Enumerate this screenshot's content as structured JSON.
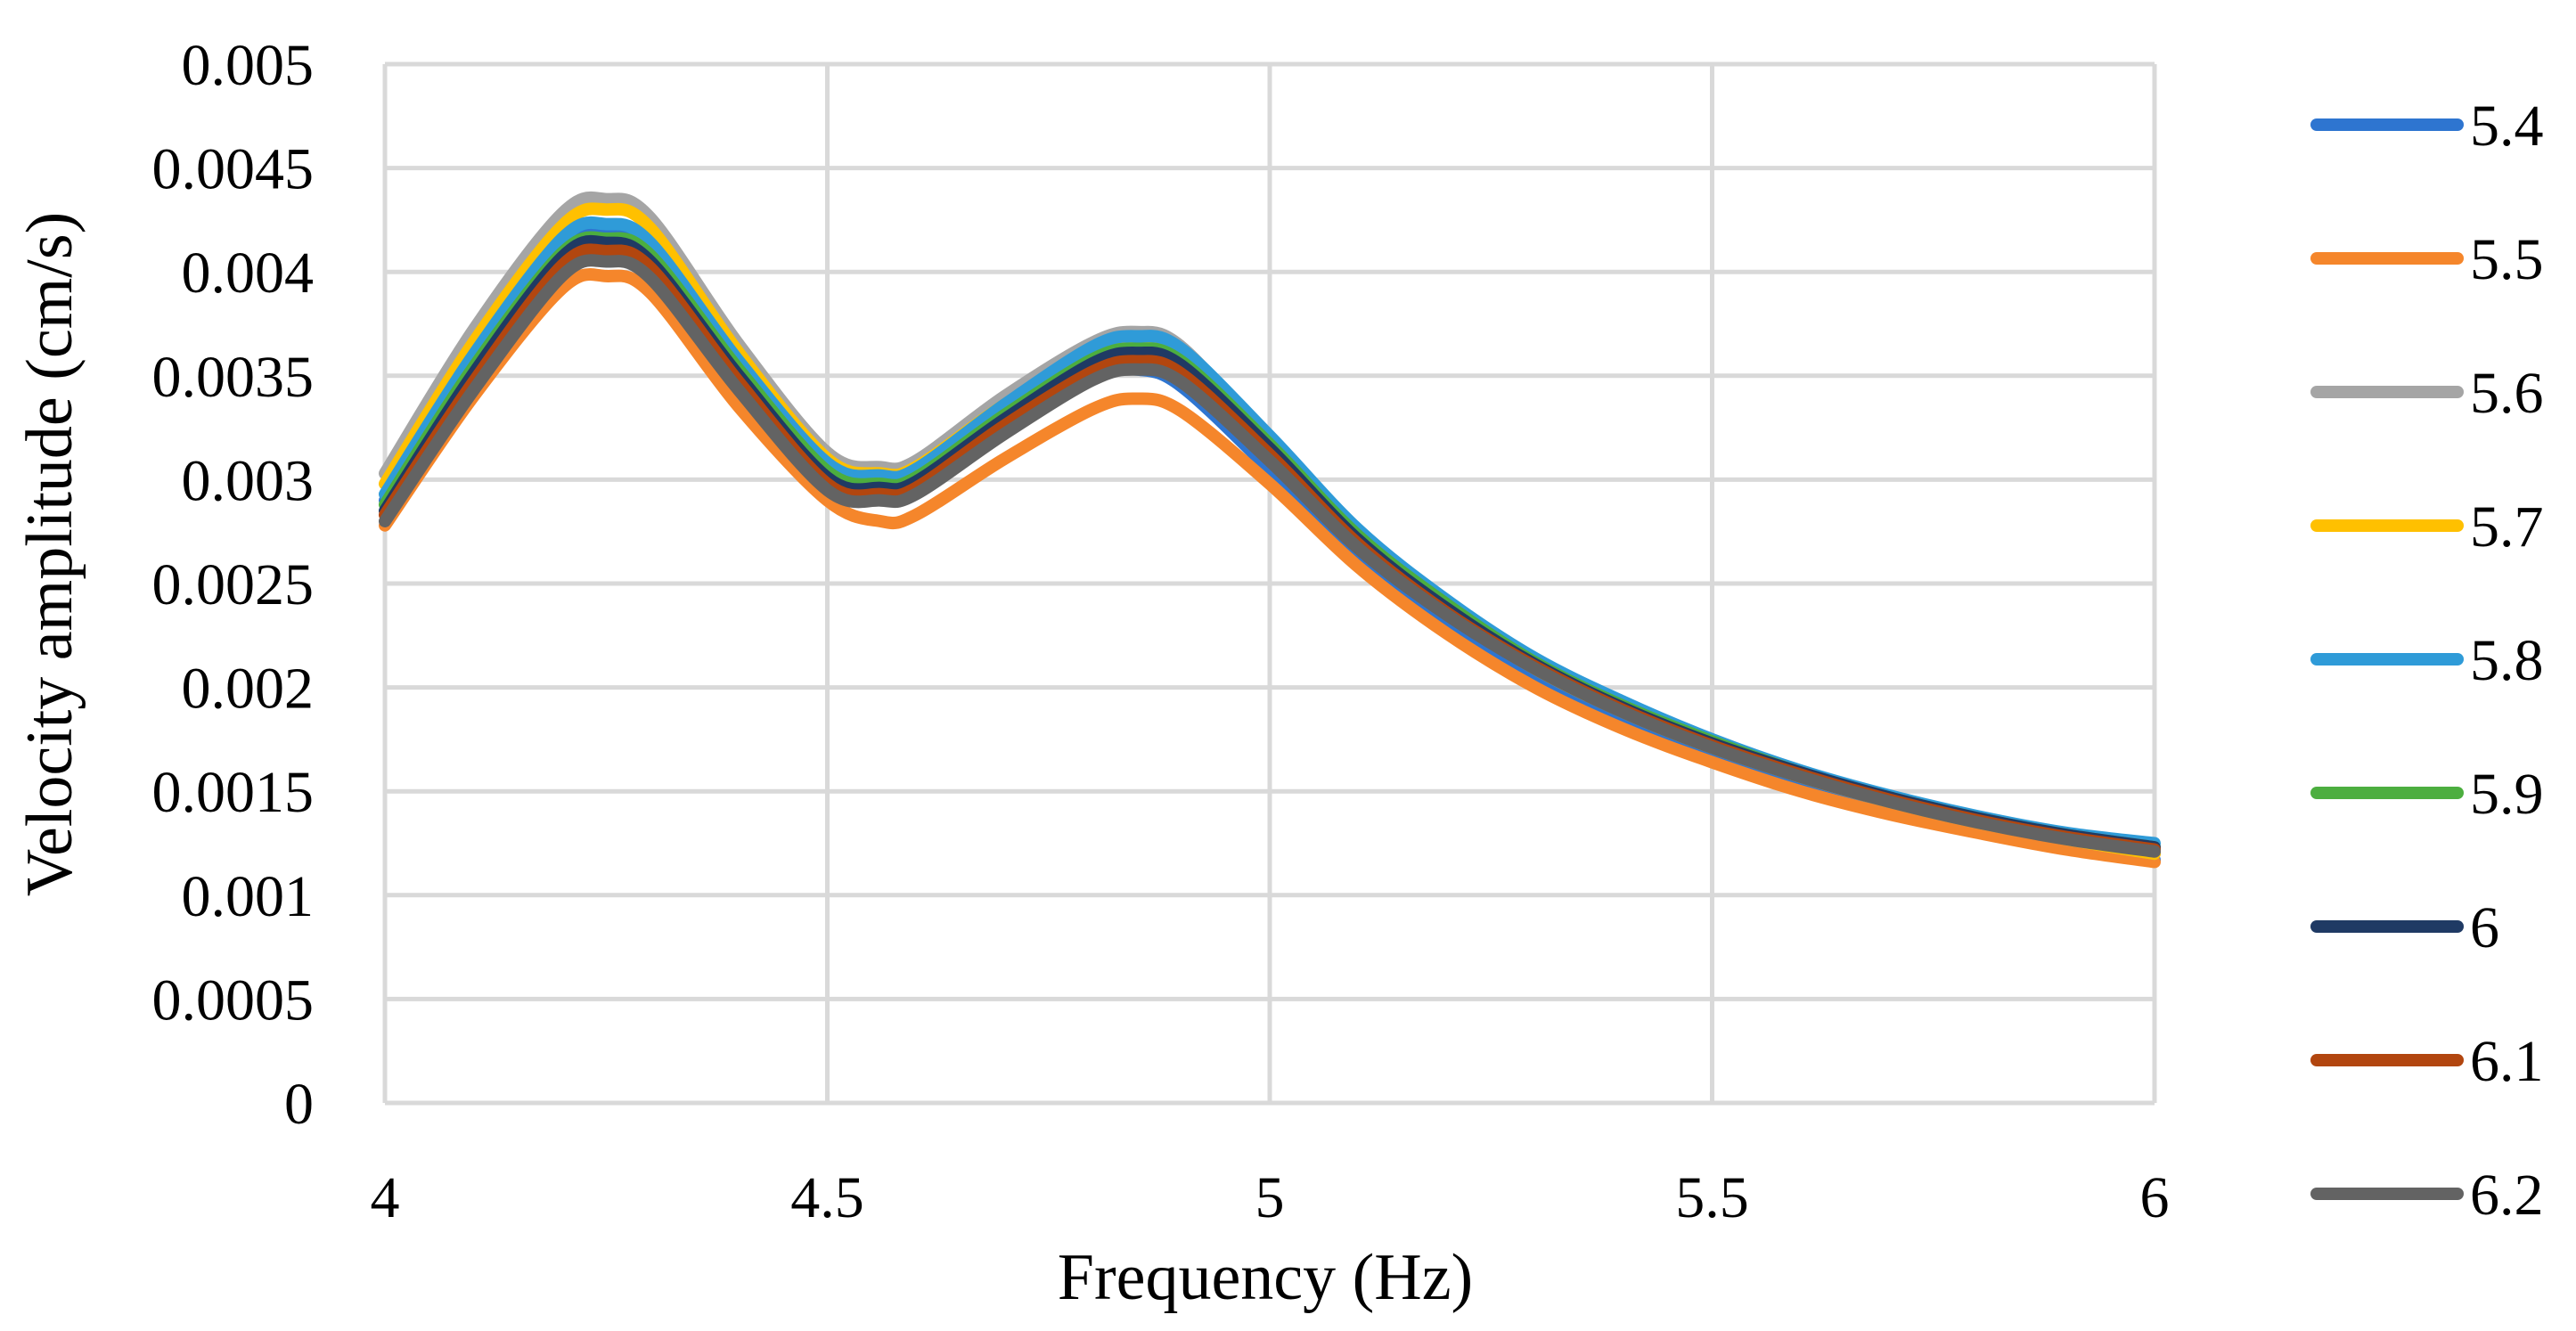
{
  "chart_data": {
    "type": "line",
    "title": "",
    "xlabel": "Frequency (Hz)",
    "ylabel": "Velocity amplitude (cm/s)",
    "xlim": [
      4,
      6
    ],
    "ylim": [
      0,
      0.005
    ],
    "xticks": [
      4,
      4.5,
      5,
      5.5,
      6
    ],
    "xtick_labels": [
      "4",
      "4.5",
      "5",
      "5.5",
      "6"
    ],
    "yticks": [
      0,
      0.0005,
      0.001,
      0.0015,
      0.002,
      0.0025,
      0.003,
      0.0035,
      0.004,
      0.0045,
      0.005
    ],
    "ytick_labels": [
      "0",
      "0.0005",
      "0.001",
      "0.0015",
      "0.002",
      "0.0025",
      "0.003",
      "0.0035",
      "0.004",
      "0.0045",
      "0.005"
    ],
    "grid": true,
    "legend_position": "right",
    "x": [
      4.0,
      4.1,
      4.2,
      4.25,
      4.3,
      4.4,
      4.5,
      4.56,
      4.6,
      4.7,
      4.8,
      4.85,
      4.9,
      5.0,
      5.1,
      5.2,
      5.3,
      5.4,
      5.5,
      5.6,
      5.7,
      5.8,
      5.9,
      6.0
    ],
    "series": [
      {
        "name": "5.4",
        "color": "#2e75d0",
        "values": [
          0.0029,
          0.00355,
          0.0041,
          0.00418,
          0.0041,
          0.00355,
          0.00305,
          0.00295,
          0.00298,
          0.00328,
          0.0035,
          0.00353,
          0.00345,
          0.00305,
          0.00262,
          0.00229,
          0.00203,
          0.00182,
          0.00166,
          0.00152,
          0.00141,
          0.00132,
          0.00124,
          0.00117
        ]
      },
      {
        "name": "5.5",
        "color": "#f5862b",
        "values": [
          0.00278,
          0.0034,
          0.00392,
          0.00398,
          0.0039,
          0.00335,
          0.0029,
          0.0028,
          0.00283,
          0.0031,
          0.00334,
          0.00339,
          0.00333,
          0.00298,
          0.00258,
          0.00226,
          0.002,
          0.0018,
          0.00164,
          0.0015,
          0.00139,
          0.0013,
          0.00122,
          0.00116
        ]
      },
      {
        "name": "5.6",
        "color": "#a5a5a5",
        "values": [
          0.00303,
          0.00372,
          0.00428,
          0.00435,
          0.00426,
          0.00365,
          0.00313,
          0.00306,
          0.00309,
          0.0034,
          0.00366,
          0.00371,
          0.00364,
          0.00318,
          0.00271,
          0.00237,
          0.0021,
          0.00189,
          0.00172,
          0.00157,
          0.00145,
          0.00135,
          0.00127,
          0.0012
        ]
      },
      {
        "name": "5.7",
        "color": "#ffc000",
        "values": [
          0.00298,
          0.00366,
          0.00422,
          0.0043,
          0.00421,
          0.00361,
          0.0031,
          0.00303,
          0.00306,
          0.00336,
          0.00362,
          0.00366,
          0.00359,
          0.00315,
          0.00269,
          0.00236,
          0.00209,
          0.00188,
          0.00171,
          0.00157,
          0.00145,
          0.00135,
          0.00127,
          0.0012
        ]
      },
      {
        "name": "5.8",
        "color": "#2f9bd8",
        "values": [
          0.00293,
          0.0036,
          0.00416,
          0.00423,
          0.00414,
          0.00357,
          0.00308,
          0.00302,
          0.00305,
          0.00336,
          0.00364,
          0.00369,
          0.00363,
          0.00321,
          0.00276,
          0.00242,
          0.00214,
          0.00193,
          0.00175,
          0.0016,
          0.00148,
          0.00138,
          0.0013,
          0.00125
        ]
      },
      {
        "name": "5.9",
        "color": "#4cae3f",
        "values": [
          0.00288,
          0.00354,
          0.00409,
          0.00416,
          0.00408,
          0.00353,
          0.00304,
          0.00298,
          0.00301,
          0.00331,
          0.00358,
          0.00363,
          0.00357,
          0.00317,
          0.00273,
          0.0024,
          0.00212,
          0.00191,
          0.00174,
          0.00159,
          0.00147,
          0.00137,
          0.00129,
          0.00123
        ]
      },
      {
        "name": "6",
        "color": "#1f3a64",
        "values": [
          0.00285,
          0.00351,
          0.00407,
          0.00414,
          0.00405,
          0.0035,
          0.00301,
          0.00296,
          0.00299,
          0.00329,
          0.00356,
          0.00361,
          0.00355,
          0.00315,
          0.00271,
          0.00238,
          0.00211,
          0.0019,
          0.00173,
          0.00159,
          0.00147,
          0.00137,
          0.00129,
          0.00123
        ]
      },
      {
        "name": "6.1",
        "color": "#b2460f",
        "values": [
          0.00283,
          0.00347,
          0.00403,
          0.0041,
          0.00402,
          0.00347,
          0.00298,
          0.00293,
          0.00296,
          0.00326,
          0.00352,
          0.00357,
          0.00351,
          0.00312,
          0.00269,
          0.00236,
          0.0021,
          0.00189,
          0.00172,
          0.00158,
          0.00146,
          0.00136,
          0.00128,
          0.00122
        ]
      },
      {
        "name": "6.2",
        "color": "#636363",
        "values": [
          0.0028,
          0.00343,
          0.00398,
          0.00405,
          0.00397,
          0.00343,
          0.00295,
          0.0029,
          0.00293,
          0.00322,
          0.00348,
          0.00353,
          0.00347,
          0.00309,
          0.00267,
          0.00235,
          0.00209,
          0.00188,
          0.00171,
          0.00157,
          0.00145,
          0.00135,
          0.00127,
          0.00121
        ]
      }
    ]
  }
}
